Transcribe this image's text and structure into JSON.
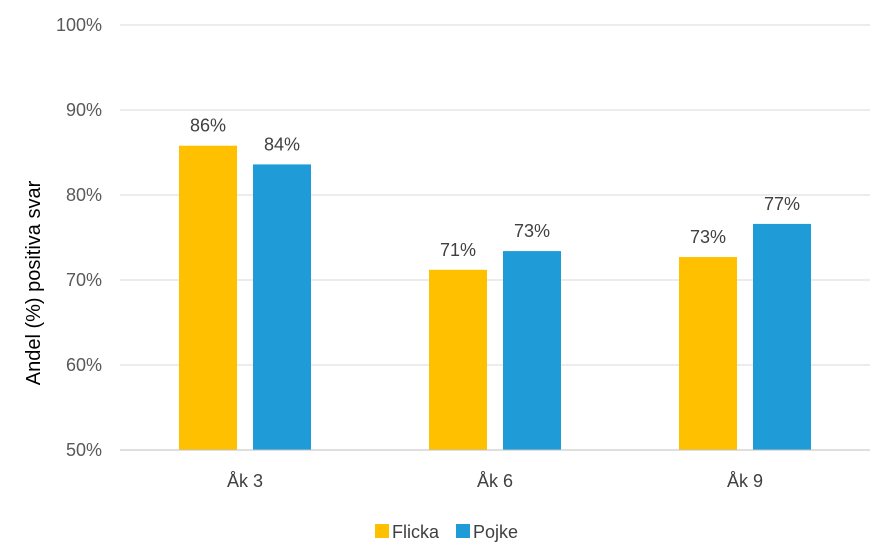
{
  "chart_data": {
    "type": "bar",
    "title": "",
    "xlabel": "",
    "ylabel": "Andel (%) positiva svar",
    "categories": [
      "Åk 3",
      "Åk 6",
      "Åk 9"
    ],
    "series": [
      {
        "name": "Flicka",
        "values": [
          85.8,
          71.2,
          72.7
        ],
        "labels": [
          "86%",
          "71%",
          "73%"
        ],
        "color": "#FFC000"
      },
      {
        "name": "Pojke",
        "values": [
          83.6,
          73.4,
          76.6
        ],
        "labels": [
          "84%",
          "73%",
          "77%"
        ],
        "color": "#1F9BD7"
      }
    ],
    "ylim": [
      50,
      100
    ],
    "yticks": [
      50,
      60,
      70,
      80,
      90,
      100
    ],
    "ytick_labels": [
      "50%",
      "60%",
      "70%",
      "80%",
      "90%",
      "100%"
    ],
    "grid": true,
    "legend_position": "bottom"
  }
}
